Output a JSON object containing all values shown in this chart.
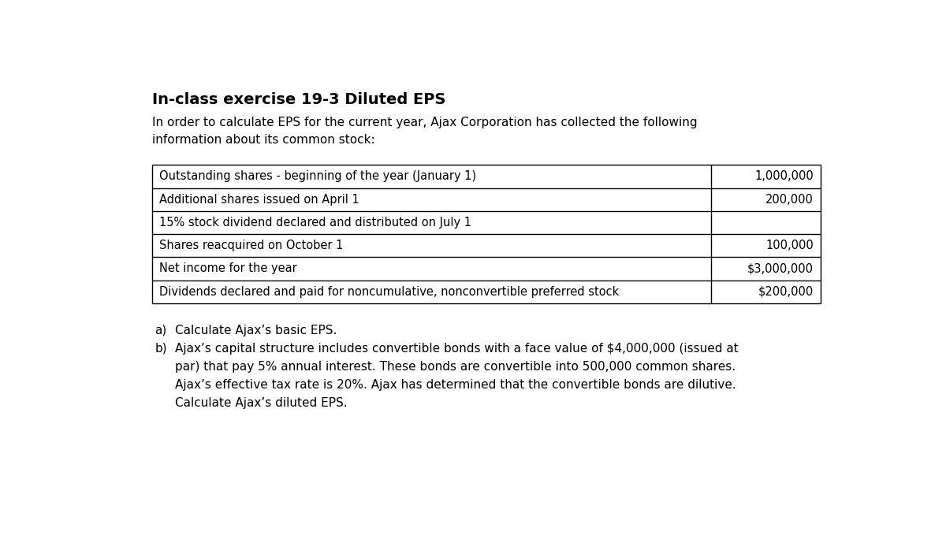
{
  "title": "In-class exercise 19-3 Diluted EPS",
  "intro_text": "In order to calculate EPS for the current year, Ajax Corporation has collected the following\ninformation about its common stock:",
  "table_rows": [
    {
      "label": "Outstanding shares - beginning of the year (January 1)",
      "value": "1,000,000"
    },
    {
      "label": "Additional shares issued on April 1",
      "value": "200,000"
    },
    {
      "label": "15% stock dividend declared and distributed on July 1",
      "value": ""
    },
    {
      "label": "Shares reacquired on October 1",
      "value": "100,000"
    },
    {
      "label": "Net income for the year",
      "value": "$3,000,000"
    },
    {
      "label": "Dividends declared and paid for noncumulative, nonconvertible preferred stock",
      "value": "$200,000"
    }
  ],
  "question_a": "Calculate Ajax’s basic EPS.",
  "question_b_line1": "Ajax’s capital structure includes convertible bonds with a face value of $4,000,000 (issued at",
  "question_b_line2": "par) that pay 5% annual interest. These bonds are convertible into 500,000 common shares.",
  "question_b_line3": "Ajax’s effective tax rate is 20%. Ajax has determined that the convertible bonds are dilutive.",
  "question_b_line4": "Calculate Ajax’s diluted EPS.",
  "bg_color": "#ffffff",
  "text_color": "#000000",
  "font_size_title": 14,
  "font_size_body": 11,
  "font_size_table": 10.5
}
